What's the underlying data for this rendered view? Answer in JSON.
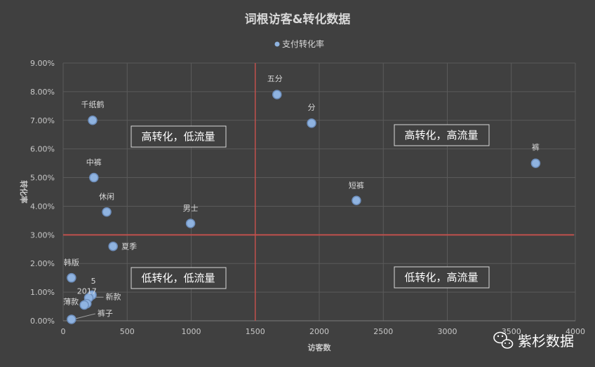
{
  "chart_data": {
    "type": "scatter",
    "title": "词根访客&转化数据",
    "xlabel": "访客数",
    "ylabel": "转化率",
    "xlim": [
      0,
      4000
    ],
    "ylim": [
      0,
      0.09
    ],
    "x_ticks": [
      "0",
      "500",
      "1000",
      "1500",
      "2000",
      "2500",
      "3000",
      "3500",
      "4000"
    ],
    "y_ticks": [
      "0.00%",
      "1.00%",
      "2.00%",
      "3.00%",
      "4.00%",
      "5.00%",
      "6.00%",
      "7.00%",
      "8.00%",
      "9.00%"
    ],
    "grid": true,
    "legend_position": "top",
    "series": [
      {
        "name": "支付转化率",
        "color": "#8fb3e0",
        "points": [
          {
            "label": "五分",
            "x": 1670,
            "y": 0.079
          },
          {
            "label": "分",
            "x": 1940,
            "y": 0.069
          },
          {
            "label": "千纸鹤",
            "x": 230,
            "y": 0.07
          },
          {
            "label": "裤",
            "x": 3690,
            "y": 0.055
          },
          {
            "label": "中裤",
            "x": 240,
            "y": 0.05
          },
          {
            "label": "短裤",
            "x": 2290,
            "y": 0.042
          },
          {
            "label": "休闲",
            "x": 340,
            "y": 0.038
          },
          {
            "label": "男士",
            "x": 995,
            "y": 0.034
          },
          {
            "label": "夏季",
            "x": 390,
            "y": 0.026
          },
          {
            "label": "韩版",
            "x": 65,
            "y": 0.015
          },
          {
            "label": "5",
            "x": 225,
            "y": 0.009
          },
          {
            "label": "新款",
            "x": 200,
            "y": 0.008
          },
          {
            "label": "2017",
            "x": 185,
            "y": 0.006
          },
          {
            "label": "薄款",
            "x": 165,
            "y": 0.0055
          },
          {
            "label": "裤子",
            "x": 65,
            "y": 0.0005
          }
        ]
      }
    ],
    "reference_lines": [
      {
        "axis": "x",
        "value": 1500,
        "color": "#c0504d"
      },
      {
        "axis": "y",
        "value": 0.03,
        "color": "#c0504d"
      }
    ],
    "quadrant_labels": {
      "top_left": "高转化，低流量",
      "top_right": "高转化，高流量",
      "bottom_left": "低转化，低流量",
      "bottom_right": "低转化，高流量"
    }
  },
  "watermark": {
    "text": "紫杉数据",
    "icon": "wechat-icon"
  }
}
